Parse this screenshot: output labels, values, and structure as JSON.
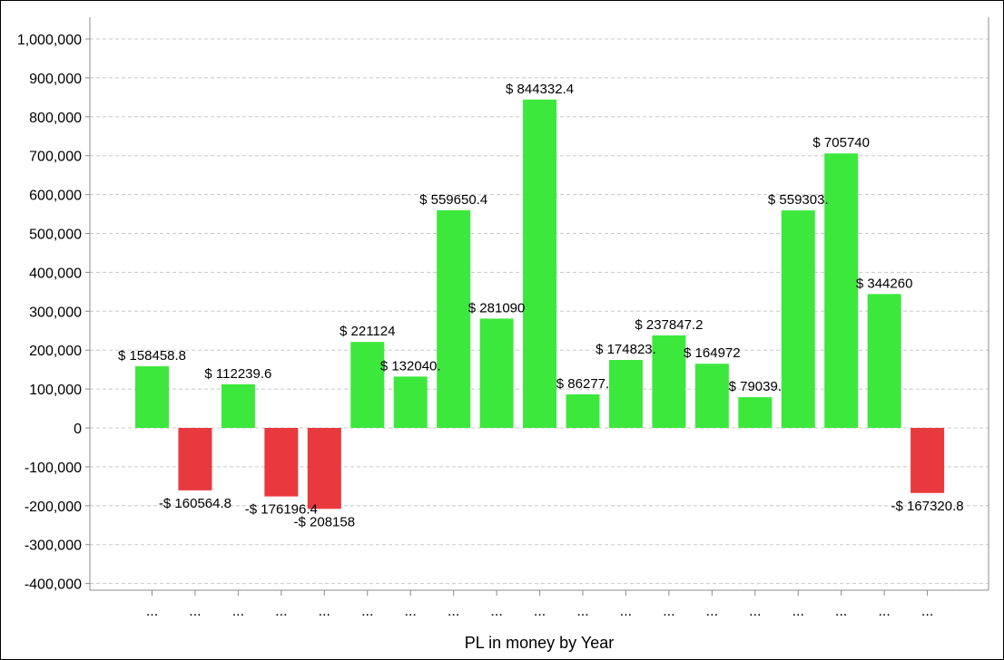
{
  "chart_data": {
    "type": "bar",
    "xlabel": "PL in money by Year",
    "ylabel": "",
    "ylim": [
      -400000,
      1000000
    ],
    "y_ticks": [
      1000000,
      900000,
      800000,
      700000,
      600000,
      500000,
      400000,
      300000,
      200000,
      100000,
      0,
      -100000,
      -200000,
      -300000,
      -400000
    ],
    "y_tick_labels": [
      "1,000,000",
      "900,000",
      "800,000",
      "700,000",
      "600,000",
      "500,000",
      "400,000",
      "300,000",
      "200,000",
      "100,000",
      "0",
      "-100,000",
      "-200,000",
      "-300,000",
      "-400,000"
    ],
    "grid": true,
    "categories": [
      "...",
      "...",
      "...",
      "...",
      "...",
      "...",
      "...",
      "...",
      "...",
      "...",
      "...",
      "...",
      "...",
      "...",
      "...",
      "...",
      "...",
      "...",
      "..."
    ],
    "values": [
      158458.8,
      -160564.8,
      112239.6,
      -176196.4,
      -208158,
      221124,
      132040,
      559650.4,
      281090,
      844332.4,
      86277,
      174823,
      237847.2,
      164972,
      79039,
      559303,
      705740,
      344260,
      -167320.8
    ],
    "data_labels": [
      "$ 158458.8",
      "-$ 160564.8",
      "$ 112239.6",
      "-$ 176196.4",
      "-$ 208158",
      "$ 221124",
      "$ 132040.",
      "$ 559650.4",
      "$ 281090",
      "$ 844332.4",
      "$ 86277.",
      "$ 174823.",
      "$ 237847.2",
      "$ 164972",
      "$ 79039.",
      "$ 559303.",
      "$ 705740",
      "$ 344260",
      "-$ 167320.8"
    ],
    "colors": {
      "positive": "#3de83d",
      "negative": "#e8393e",
      "grid": "#c8c8c8",
      "axis": "#8c8c8c"
    }
  }
}
